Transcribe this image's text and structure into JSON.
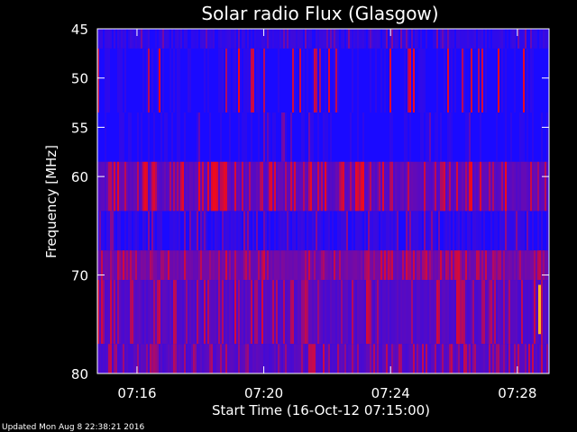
{
  "chart_data": {
    "type": "heatmap",
    "title": "Solar radio Flux (Glasgow)",
    "xlabel": "Start Time (16-Oct-12 07:15:00)",
    "ylabel": "Frequency [MHz]",
    "x_ticks": [
      "07:16",
      "07:20",
      "07:24",
      "07:28"
    ],
    "x_tick_minutes": [
      1,
      5,
      9,
      13
    ],
    "x_range_minutes": [
      -0.25,
      14.0
    ],
    "y_ticks": [
      45,
      50,
      55,
      60,
      70,
      80
    ],
    "y_tick_positions": [
      45,
      50,
      55,
      60,
      70,
      80
    ],
    "y_range": [
      45,
      80
    ],
    "colors": {
      "background": "#000000",
      "axis": "#ffffff",
      "low": "#1a0aff",
      "mid": "#7a0aa0",
      "high": "#ff0a0a",
      "peak": "#ffb020"
    },
    "bands": [
      {
        "freq_range": [
          45.0,
          47.0
        ],
        "base_level": 0.12,
        "burst_density": 0.1,
        "burst_level": 0.55
      },
      {
        "freq_range": [
          47.0,
          53.5
        ],
        "base_level": 0.05,
        "burst_density": 0.08,
        "burst_level": 0.95
      },
      {
        "freq_range": [
          53.5,
          58.5
        ],
        "base_level": 0.05,
        "burst_density": 0.04,
        "burst_level": 0.5
      },
      {
        "freq_range": [
          58.5,
          63.5
        ],
        "base_level": 0.35,
        "burst_density": 0.35,
        "burst_level": 0.95
      },
      {
        "freq_range": [
          63.5,
          67.5
        ],
        "base_level": 0.1,
        "burst_density": 0.1,
        "burst_level": 0.6
      },
      {
        "freq_range": [
          67.5,
          70.5
        ],
        "base_level": 0.45,
        "burst_density": 0.3,
        "burst_level": 0.85
      },
      {
        "freq_range": [
          70.5,
          77.0
        ],
        "base_level": 0.3,
        "burst_density": 0.25,
        "burst_level": 0.85
      },
      {
        "freq_range": [
          77.0,
          80.0
        ],
        "base_level": 0.3,
        "burst_density": 0.28,
        "burst_level": 0.8
      }
    ]
  },
  "footer": {
    "updated_text": "Updated Mon Aug  8 22:38:21 2016"
  }
}
